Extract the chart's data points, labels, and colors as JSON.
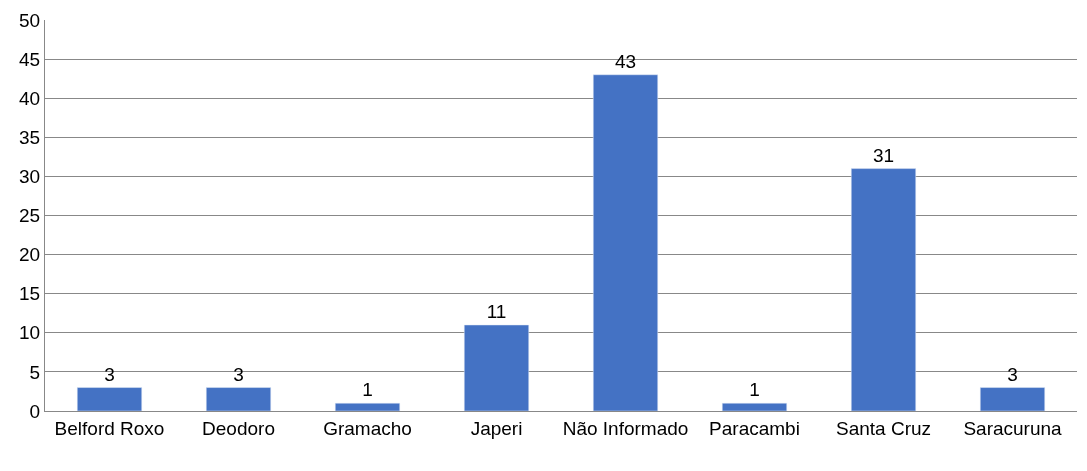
{
  "chart_data": {
    "type": "bar",
    "categories": [
      "Belford Roxo",
      "Deodoro",
      "Gramacho",
      "Japeri",
      "Não Informado",
      "Paracambi",
      "Santa Cruz",
      "Saracuruna"
    ],
    "values": [
      3,
      3,
      1,
      11,
      43,
      1,
      31,
      3
    ],
    "color": "#4472c4",
    "ylim": [
      0,
      50
    ],
    "yticks": [
      0,
      5,
      10,
      15,
      20,
      25,
      30,
      35,
      40,
      45,
      50
    ],
    "grid": "y",
    "data_labels": true
  }
}
